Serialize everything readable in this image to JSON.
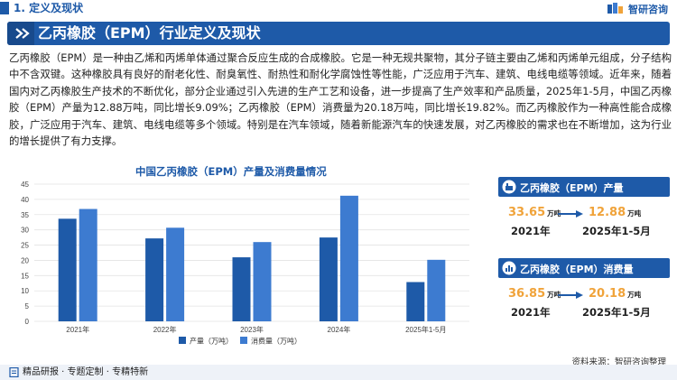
{
  "section": {
    "label": "1. 定义及现状"
  },
  "brand": {
    "name": "智研咨询"
  },
  "banner": {
    "title": "乙丙橡胶（EPM）行业定义及现状"
  },
  "paragraph": "乙丙橡胶（EPM）是一种由乙烯和丙烯单体通过聚合反应生成的合成橡胶。它是一种无规共聚物，其分子链主要由乙烯和丙烯单元组成，分子结构中不含双键。这种橡胶具有良好的耐老化性、耐臭氧性、耐热性和耐化学腐蚀性等性能，广泛应用于汽车、建筑、电线电缆等领域。近年来，随着国内对乙丙橡胶生产技术的不断优化，部分企业通过引入先进的生产工艺和设备，进一步提高了生产效率和产品质量，2025年1-5月，中国乙丙橡胶（EPM）产量为12.88万吨，同比增长9.09%；乙丙橡胶（EPM）消费量为20.18万吨，同比增长19.82%。而乙丙橡胶作为一种高性能合成橡胶，广泛应用于汽车、建筑、电线电缆等多个领域。特别是在汽车领域，随着新能源汽车的快速发展，对乙丙橡胶的需求也在不断增加，这为行业的增长提供了有力支撑。",
  "chart_data": {
    "type": "bar",
    "title": "中国乙丙橡胶（EPM）产量及消费量情况",
    "categories": [
      "2021年",
      "2022年",
      "2023年",
      "2024年",
      "2025年1-5月"
    ],
    "series": [
      {
        "name": "产量（万吨）",
        "values": [
          33.65,
          27.2,
          21.0,
          27.5,
          12.88
        ],
        "color": "#1e5aa8"
      },
      {
        "name": "消费量（万吨）",
        "values": [
          36.85,
          30.7,
          26.0,
          41.2,
          20.18
        ],
        "color": "#3d7bd0"
      }
    ],
    "yticks": [
      0,
      5,
      10,
      15,
      20,
      25,
      30,
      35,
      40,
      45
    ],
    "ylim": [
      0,
      45
    ],
    "grid": true,
    "legend": "bottom"
  },
  "cards": {
    "production": {
      "title": "乙丙橡胶（EPM）产量",
      "value_a": "33.65",
      "unit_a": "万吨",
      "year_a": "2021年",
      "value_b": "12.88",
      "unit_b": "万吨",
      "year_b": "2025年1-5月"
    },
    "consumption": {
      "title": "乙丙橡胶（EPM）消费量",
      "value_a": "36.85",
      "unit_a": "万吨",
      "year_a": "2021年",
      "value_b": "20.18",
      "unit_b": "万吨",
      "year_b": "2025年1-5月"
    }
  },
  "source": "资料来源：智研咨询整理",
  "footer": {
    "text": "精品研报 · 专题定制 · 专精特新"
  },
  "colors": {
    "primary": "#1e5aa8",
    "secondary": "#3d7bd0",
    "highlight": "#f0a33a"
  }
}
